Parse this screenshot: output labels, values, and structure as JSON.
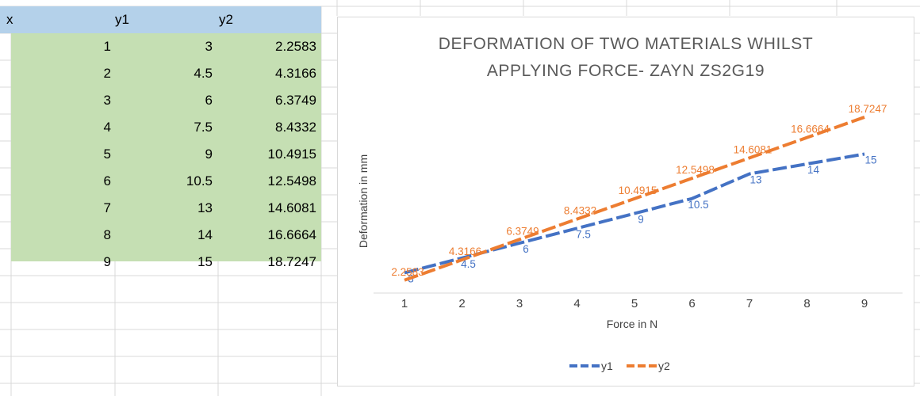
{
  "sheet": {
    "headers": [
      "x",
      "y1",
      "y2"
    ],
    "rows": [
      {
        "x": "1",
        "y1": "3",
        "y2": "2.2583"
      },
      {
        "x": "2",
        "y1": "4.5",
        "y2": "4.3166"
      },
      {
        "x": "3",
        "y1": "6",
        "y2": "6.3749"
      },
      {
        "x": "4",
        "y1": "7.5",
        "y2": "8.4332"
      },
      {
        "x": "5",
        "y1": "9",
        "y2": "10.4915"
      },
      {
        "x": "6",
        "y1": "10.5",
        "y2": "12.5498"
      },
      {
        "x": "7",
        "y1": "13",
        "y2": "14.6081"
      },
      {
        "x": "8",
        "y1": "14",
        "y2": "16.6664"
      },
      {
        "x": "9",
        "y1": "15",
        "y2": "18.7247"
      }
    ],
    "colors": {
      "header_fill": "#b4d1ea",
      "data_fill": "#c5dfb3",
      "gridline": "#d9d9d9"
    }
  },
  "chart_data": {
    "type": "line",
    "title_lines": [
      "DEFORMATION OF TWO MATERIALS WHILST",
      "APPLYING FORCE- ZAYN ZS2G19"
    ],
    "xlabel": "Force in N",
    "ylabel": "Deformation in mm",
    "x": [
      1,
      2,
      3,
      4,
      5,
      6,
      7,
      8,
      9
    ],
    "x_tick_labels": [
      "1",
      "2",
      "3",
      "4",
      "5",
      "6",
      "7",
      "8",
      "9"
    ],
    "series": [
      {
        "name": "y1",
        "color": "#4472c4",
        "dashed": true,
        "values": [
          3,
          4.5,
          6,
          7.5,
          9,
          10.5,
          13,
          14,
          15
        ],
        "labels": [
          "3",
          "4.5",
          "6",
          "7.5",
          "9",
          "10.5",
          "13",
          "14",
          "15"
        ]
      },
      {
        "name": "y2",
        "color": "#ed7d31",
        "dashed": true,
        "values": [
          2.2583,
          4.3166,
          6.3749,
          8.4332,
          10.4915,
          12.5498,
          14.6081,
          16.6664,
          18.7247
        ],
        "labels": [
          "2.2583",
          "4.3166",
          "6.3749",
          "8.4332",
          "10.4915",
          "12.5498",
          "14.6081",
          "16.6664",
          "18.7247"
        ]
      }
    ],
    "ylim": [
      2,
      20
    ],
    "y_axis_visible": false,
    "grid": false,
    "legend_position": "bottom"
  }
}
